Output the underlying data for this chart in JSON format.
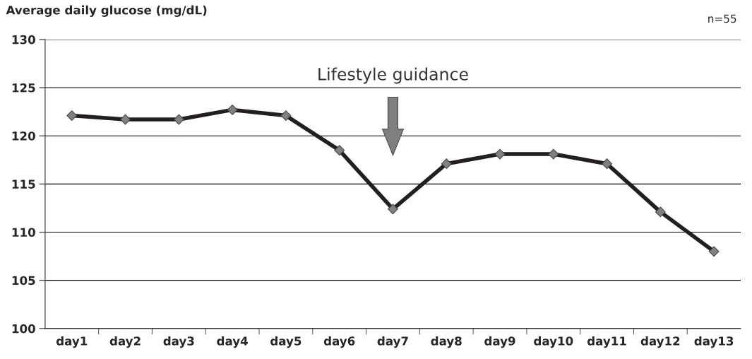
{
  "chart_data": {
    "type": "line",
    "ylabel": "Average daily glucose (mg/dL)",
    "categories": [
      "day1",
      "day2",
      "day3",
      "day4",
      "day5",
      "day6",
      "day7",
      "day8",
      "day9",
      "day10",
      "day11",
      "day12",
      "day13"
    ],
    "series": [
      {
        "color": "#231f20",
        "values": [
          122.1,
          121.7,
          121.7,
          122.7,
          122.1,
          118.5,
          112.4,
          117.1,
          118.1,
          118.1,
          117.1,
          112.1,
          108.0
        ]
      }
    ],
    "ylim": [
      100,
      130
    ],
    "yticks": [
      100,
      105,
      110,
      115,
      120,
      125,
      130
    ],
    "grid": "y",
    "marker": "diamond",
    "line_style": "solid",
    "annotations": [
      "Lifestyle guidance",
      "n=55"
    ]
  }
}
